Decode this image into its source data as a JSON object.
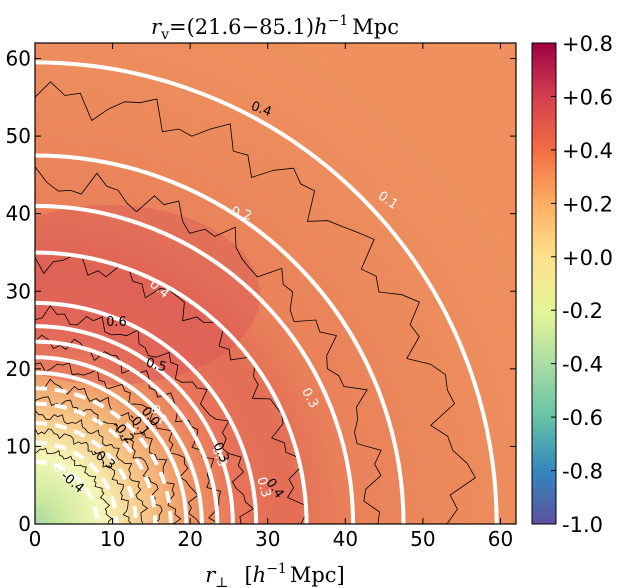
{
  "chart_data": {
    "type": "heatmap",
    "title": "r_v = (21.6−85.1) h⁻¹ Mpc",
    "title_parts": {
      "r": "r",
      "sub": "v",
      "eq": "=(21.6−85.1)",
      "h": "h",
      "exp": "−1",
      "unit": "Mpc"
    },
    "xlabel": "r_⊥  [h⁻¹ Mpc]",
    "xlabel_parts": {
      "r": "r",
      "sub": "⊥",
      "open": "[",
      "h": "h",
      "exp": "−1",
      "unit": "Mpc]"
    },
    "ylabel": "",
    "xlim": [
      0,
      62
    ],
    "ylim": [
      0,
      62
    ],
    "xticks": [
      "0",
      "10",
      "20",
      "30",
      "40",
      "50",
      "60"
    ],
    "yticks": [
      "0",
      "10",
      "20",
      "30",
      "40",
      "50",
      "60"
    ],
    "colorbar": {
      "range": [
        -1.0,
        0.8
      ],
      "ticks": [
        "+0.8",
        "+0.6",
        "+0.4",
        "+0.2",
        "+0.0",
        "-0.2",
        "-0.4",
        "-0.6",
        "-0.8",
        "-1.0"
      ],
      "tick_values": [
        0.8,
        0.6,
        0.4,
        0.2,
        0.0,
        -0.2,
        -0.4,
        -0.6,
        -0.8,
        -1.0
      ],
      "colormap": "Spectral_r"
    },
    "model_contours": {
      "color": "#ffffff",
      "levels": [
        {
          "level": "0.1",
          "radius": 59.5
        },
        {
          "level": "0.2",
          "radius": 47.5
        },
        {
          "level": "0.3",
          "radius": 41.0
        },
        {
          "level": "0.4",
          "radius": 35.0
        },
        {
          "level": "0.4",
          "radius": 28.5
        },
        {
          "level": "0.3",
          "radius": 25.5
        },
        {
          "level": "0.3",
          "radius": 23.5
        },
        {
          "level": "0.1",
          "radius": 21.5
        },
        {
          "level": "0.0",
          "radius": 19.5
        },
        {
          "level": "-0.1",
          "radius": 17.5
        },
        {
          "level": "-0.2",
          "radius": 15.5
        },
        {
          "level": "-0.3",
          "radius": 13.0
        },
        {
          "level": "-0.4",
          "radius": 10.5
        },
        {
          "level": "-0.5",
          "radius": 8.0
        }
      ]
    },
    "data_contours": {
      "color": "#000000",
      "labels": [
        "0.4",
        "0.6",
        "0.5",
        "0.4",
        "0.3",
        "0.1",
        "0.0",
        "-0.1",
        "-0.2",
        "-0.3",
        "-0.4"
      ]
    },
    "contour_labels": [
      {
        "text": "0.1",
        "x": 45.2,
        "y": 41.3,
        "color": "white",
        "rot": 35
      },
      {
        "text": "0.2",
        "x": 26.5,
        "y": 39.5,
        "color": "white",
        "rot": 15
      },
      {
        "text": "0.4",
        "x": 15.7,
        "y": 29.9,
        "color": "white",
        "rot": 40
      },
      {
        "text": "0.3",
        "x": 35.0,
        "y": 16.0,
        "color": "white",
        "rot": 62
      },
      {
        "text": "0.3",
        "x": 23.3,
        "y": 8.5,
        "color": "white",
        "rot": 68
      },
      {
        "text": "0.3",
        "x": 29.0,
        "y": 4.6,
        "color": "white",
        "rot": 75
      },
      {
        "text": "0.1",
        "x": 15.5,
        "y": 13.8,
        "color": "white",
        "rot": 55
      },
      {
        "text": "-0.4",
        "x": 4.8,
        "y": 5.0,
        "color": "white",
        "rot": 40
      },
      {
        "text": "-0.5",
        "x": 3.0,
        "y": 6.5,
        "color": "white",
        "rot": 45
      },
      {
        "text": "0.4",
        "x": 29.0,
        "y": 53.0,
        "color": "black",
        "rot": 20
      },
      {
        "text": "0.6",
        "x": 10.5,
        "y": 25.5,
        "color": "black",
        "rot": 0
      },
      {
        "text": "0.5",
        "x": 15.5,
        "y": 20.0,
        "color": "black",
        "rot": 15
      },
      {
        "text": "0.4",
        "x": 30.5,
        "y": 4.3,
        "color": "black",
        "rot": 55
      },
      {
        "text": "0.3",
        "x": 23.5,
        "y": 9.0,
        "color": "black",
        "rot": 65
      },
      {
        "text": "0.0",
        "x": 14.5,
        "y": 13.5,
        "color": "black",
        "rot": 50
      },
      {
        "text": "-0.1",
        "x": 13.0,
        "y": 12.5,
        "color": "black",
        "rot": 50
      },
      {
        "text": "-0.2",
        "x": 11.0,
        "y": 11.5,
        "color": "black",
        "rot": 50
      },
      {
        "text": "-0.3",
        "x": 8.5,
        "y": 8.0,
        "color": "black",
        "rot": 40
      },
      {
        "text": "-0.4",
        "x": 4.5,
        "y": 5.0,
        "color": "black",
        "rot": 40
      }
    ]
  }
}
